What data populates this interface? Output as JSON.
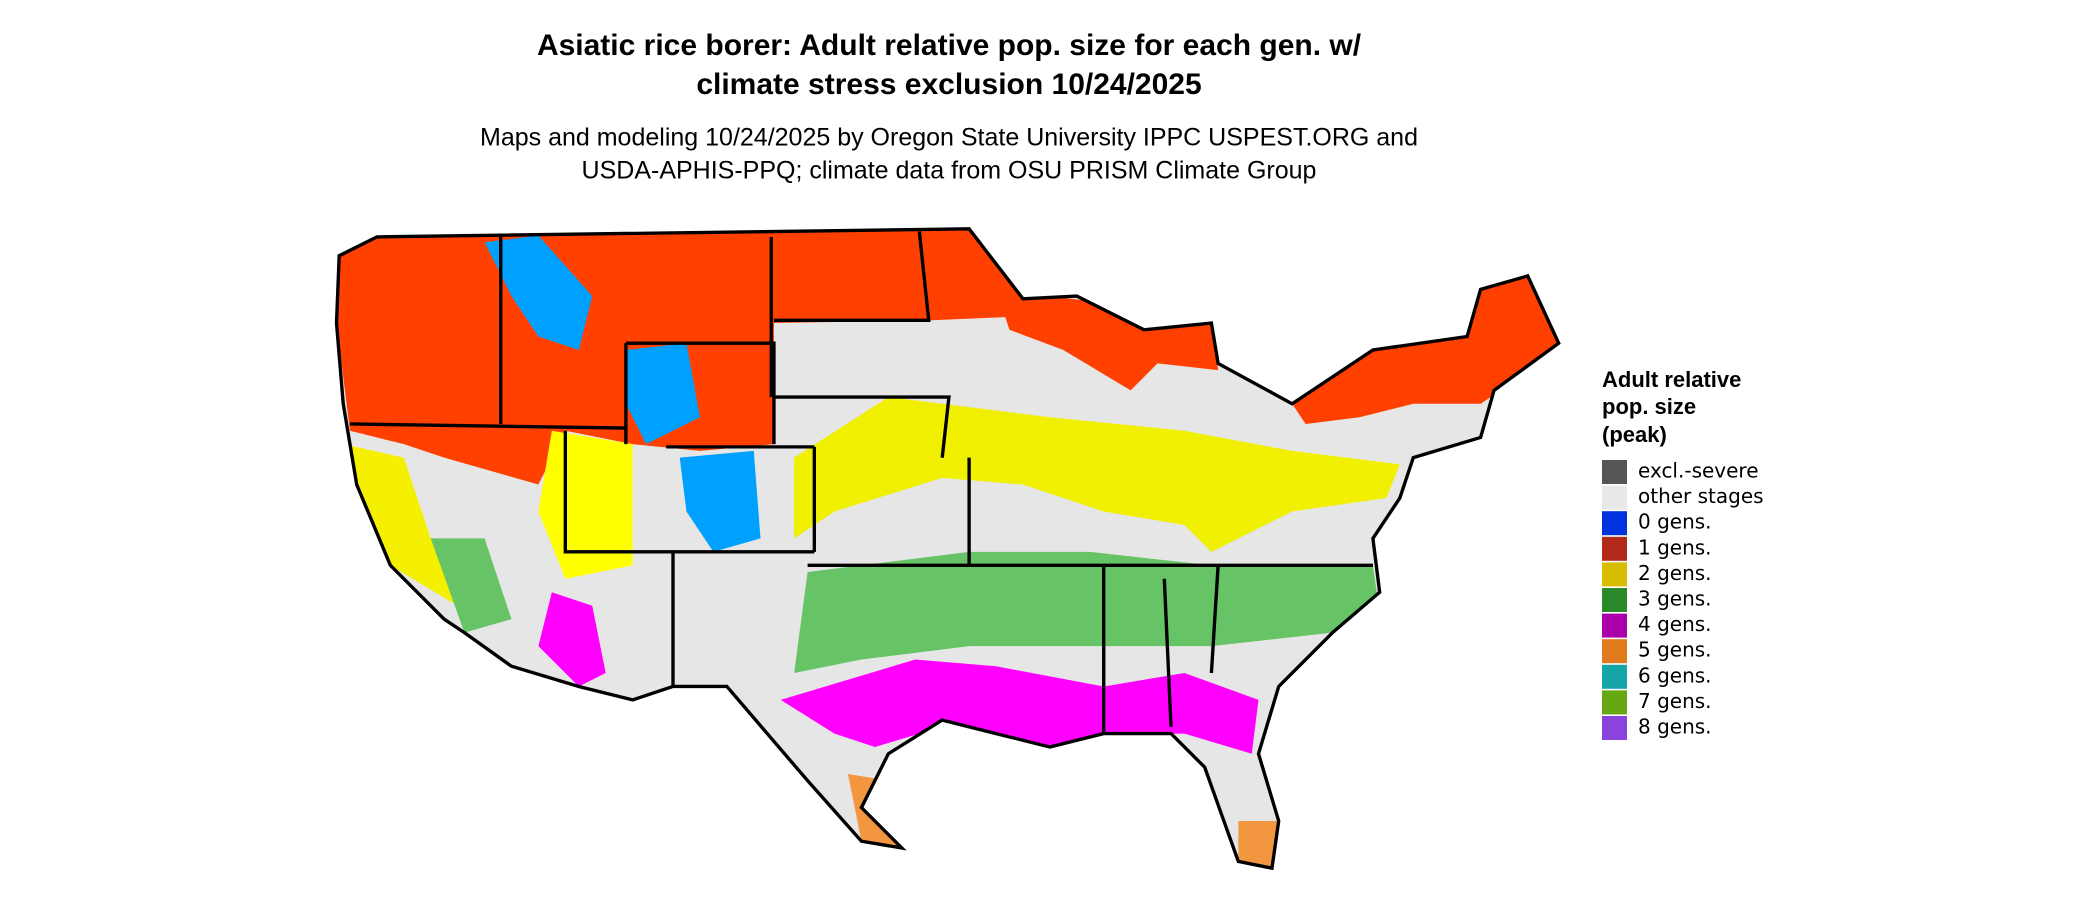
{
  "title_lines": [
    "Asiatic rice borer: Adult relative pop. size for each gen. w/",
    "climate stress exclusion 10/24/2025"
  ],
  "subtitle_lines": [
    "Maps and modeling 10/24/2025 by Oregon State University IPPC USPEST.ORG and",
    "USDA-APHIS-PPQ; climate data from OSU PRISM Climate Group"
  ],
  "legend": {
    "title_lines": [
      "Adult relative",
      "pop. size",
      "(peak)"
    ],
    "items": [
      {
        "label": "excl.-severe",
        "color": "#555555"
      },
      {
        "label": "other stages",
        "color": "#e8e8e8"
      },
      {
        "label": "0 gens.",
        "color": "#0033dd"
      },
      {
        "label": "1 gens.",
        "color": "#b22a1a"
      },
      {
        "label": "2 gens.",
        "color": "#d8bc00"
      },
      {
        "label": "3 gens.",
        "color": "#2a8a2a"
      },
      {
        "label": "4 gens.",
        "color": "#aa00aa"
      },
      {
        "label": "5 gens.",
        "color": "#e07a1c"
      },
      {
        "label": "6 gens.",
        "color": "#14a6a6"
      },
      {
        "label": "7 gens.",
        "color": "#66a814"
      },
      {
        "label": "8 gens.",
        "color": "#8a44dd"
      }
    ]
  }
}
